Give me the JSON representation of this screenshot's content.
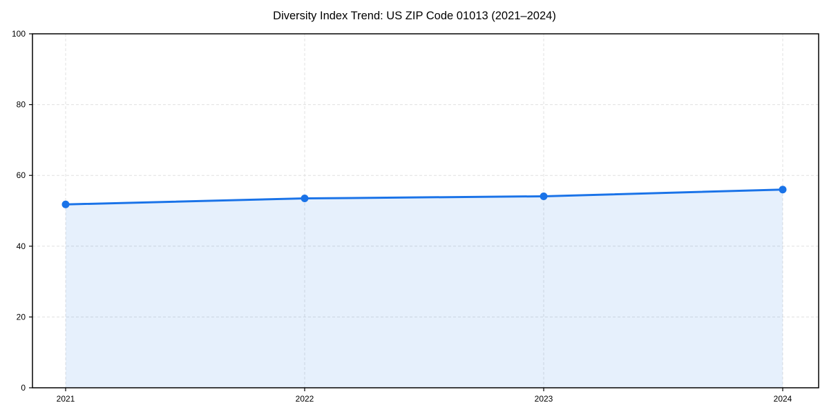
{
  "chart_data": {
    "type": "area",
    "title": "Diversity Index Trend: US ZIP Code 01013 (2021–2024)",
    "x": [
      2021,
      2022,
      2023,
      2024
    ],
    "xtick_labels": [
      "2021",
      "2022",
      "2023",
      "2024"
    ],
    "yticks": [
      0,
      20,
      40,
      60,
      80,
      100
    ],
    "ylim": [
      0,
      100
    ],
    "series": [
      {
        "name": "Diversity Index",
        "values": [
          51.8,
          53.5,
          54.1,
          56.0
        ]
      }
    ],
    "xlabel": "",
    "ylabel": "",
    "grid": true,
    "grid_style": "dashed",
    "legend": "none",
    "marker": "circle",
    "colors": {
      "line": "#1a73e8",
      "marker": "#1a73e8",
      "fill": "rgba(26,115,232,0.11)",
      "grid": "#e0e0e0",
      "axis": "#000000",
      "text": "#000000",
      "background": "#ffffff"
    }
  }
}
